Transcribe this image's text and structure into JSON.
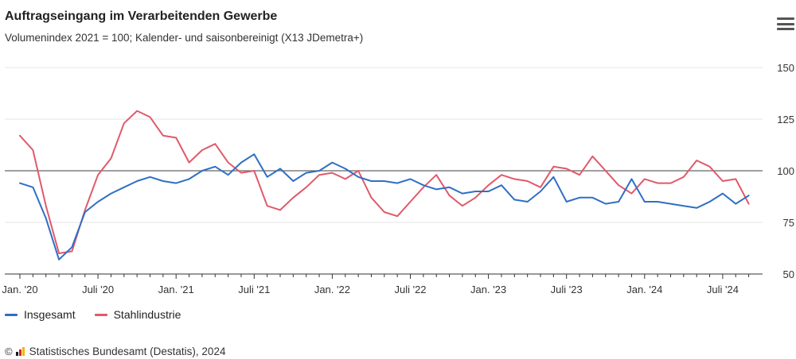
{
  "header": {
    "title": "Auftragseingang im Verarbeitenden Gewerbe",
    "subtitle": "Volumenindex 2021 = 100; Kalender- und saisonbereinigt (X13 JDemetra+)"
  },
  "menu": {
    "icon": "hamburger-menu-icon"
  },
  "footer": {
    "copyright_symbol": "©",
    "source": "Statistisches Bundesamt (Destatis), 2024"
  },
  "colors": {
    "series1": "#2f6fc4",
    "series2": "#e05a6a",
    "reference": "#666666",
    "grid": "#e6e6e6",
    "axis": "#333333"
  },
  "chart_data": {
    "type": "line",
    "title": "Auftragseingang im Verarbeitenden Gewerbe",
    "subtitle": "Volumenindex 2021 = 100; Kalender- und saisonbereinigt (X13 JDemetra+)",
    "xlabel": "",
    "ylabel": "",
    "ylim": [
      50,
      150
    ],
    "yticks": [
      50,
      75,
      100,
      125,
      150
    ],
    "reference_line": 100,
    "x_start": "2020-01",
    "x_tick_labels": [
      "Jan. '20",
      "Juli '20",
      "Jan. '21",
      "Juli '21",
      "Jan. '22",
      "Juli '22",
      "Jan. '23",
      "Juli '23",
      "Jan. '24",
      "Juli '24"
    ],
    "legend_position": "bottom-left",
    "grid": true,
    "series": [
      {
        "name": "Insgesamt",
        "color": "#2f6fc4",
        "values": [
          94,
          92,
          77,
          57,
          63,
          80,
          85,
          89,
          92,
          95,
          97,
          95,
          94,
          96,
          100,
          102,
          98,
          104,
          108,
          97,
          101,
          95,
          99,
          100,
          104,
          101,
          97,
          95,
          95,
          94,
          96,
          93,
          91,
          92,
          89,
          90,
          90,
          93,
          86,
          85,
          90,
          97,
          85,
          87,
          87,
          84,
          85,
          96,
          85,
          85,
          84,
          83,
          82,
          85,
          89,
          84,
          88
        ]
      },
      {
        "name": "Stahlindustrie",
        "color": "#e05a6a",
        "values": [
          117,
          110,
          83,
          60,
          61,
          81,
          98,
          106,
          123,
          129,
          126,
          117,
          116,
          104,
          110,
          113,
          104,
          99,
          100,
          83,
          81,
          87,
          92,
          98,
          99,
          96,
          100,
          87,
          80,
          78,
          85,
          92,
          98,
          88,
          83,
          87,
          93,
          98,
          96,
          95,
          92,
          102,
          101,
          98,
          107,
          100,
          93,
          89,
          96,
          94,
          94,
          97,
          105,
          102,
          95,
          96,
          84
        ]
      }
    ]
  }
}
